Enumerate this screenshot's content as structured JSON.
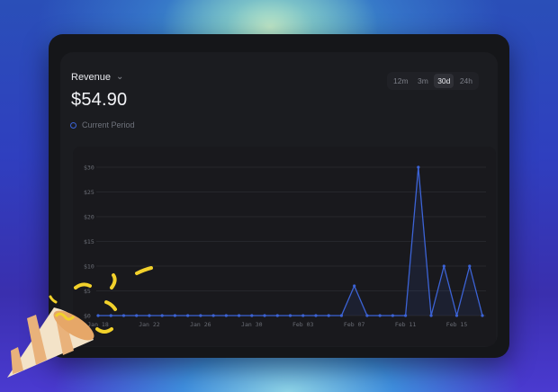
{
  "header": {
    "metric_label": "Revenue",
    "total": "$54.90"
  },
  "legend": {
    "label": "Current Period",
    "color": "#3c63d6"
  },
  "range": {
    "options": [
      "12m",
      "3m",
      "30d",
      "24h"
    ],
    "selected": "30d"
  },
  "chart_data": {
    "type": "line",
    "series": [
      {
        "name": "Current Period",
        "values": [
          0,
          0,
          0,
          0,
          0,
          0,
          0,
          0,
          0,
          0,
          0,
          0,
          0,
          0,
          0,
          0,
          0,
          0,
          0,
          0,
          6,
          0,
          0,
          0,
          0,
          30,
          0,
          10,
          0,
          10,
          0
        ]
      }
    ],
    "x_tick_labels": [
      "Jan 18",
      "Jan 22",
      "Jan 26",
      "Jan 30",
      "Feb 03",
      "Feb 07",
      "Feb 11",
      "Feb 15"
    ],
    "y_tick_labels": [
      "$0",
      "$5",
      "$10",
      "$15",
      "$20",
      "$25",
      "$30"
    ],
    "ylim": [
      0,
      30
    ],
    "grid": true
  }
}
